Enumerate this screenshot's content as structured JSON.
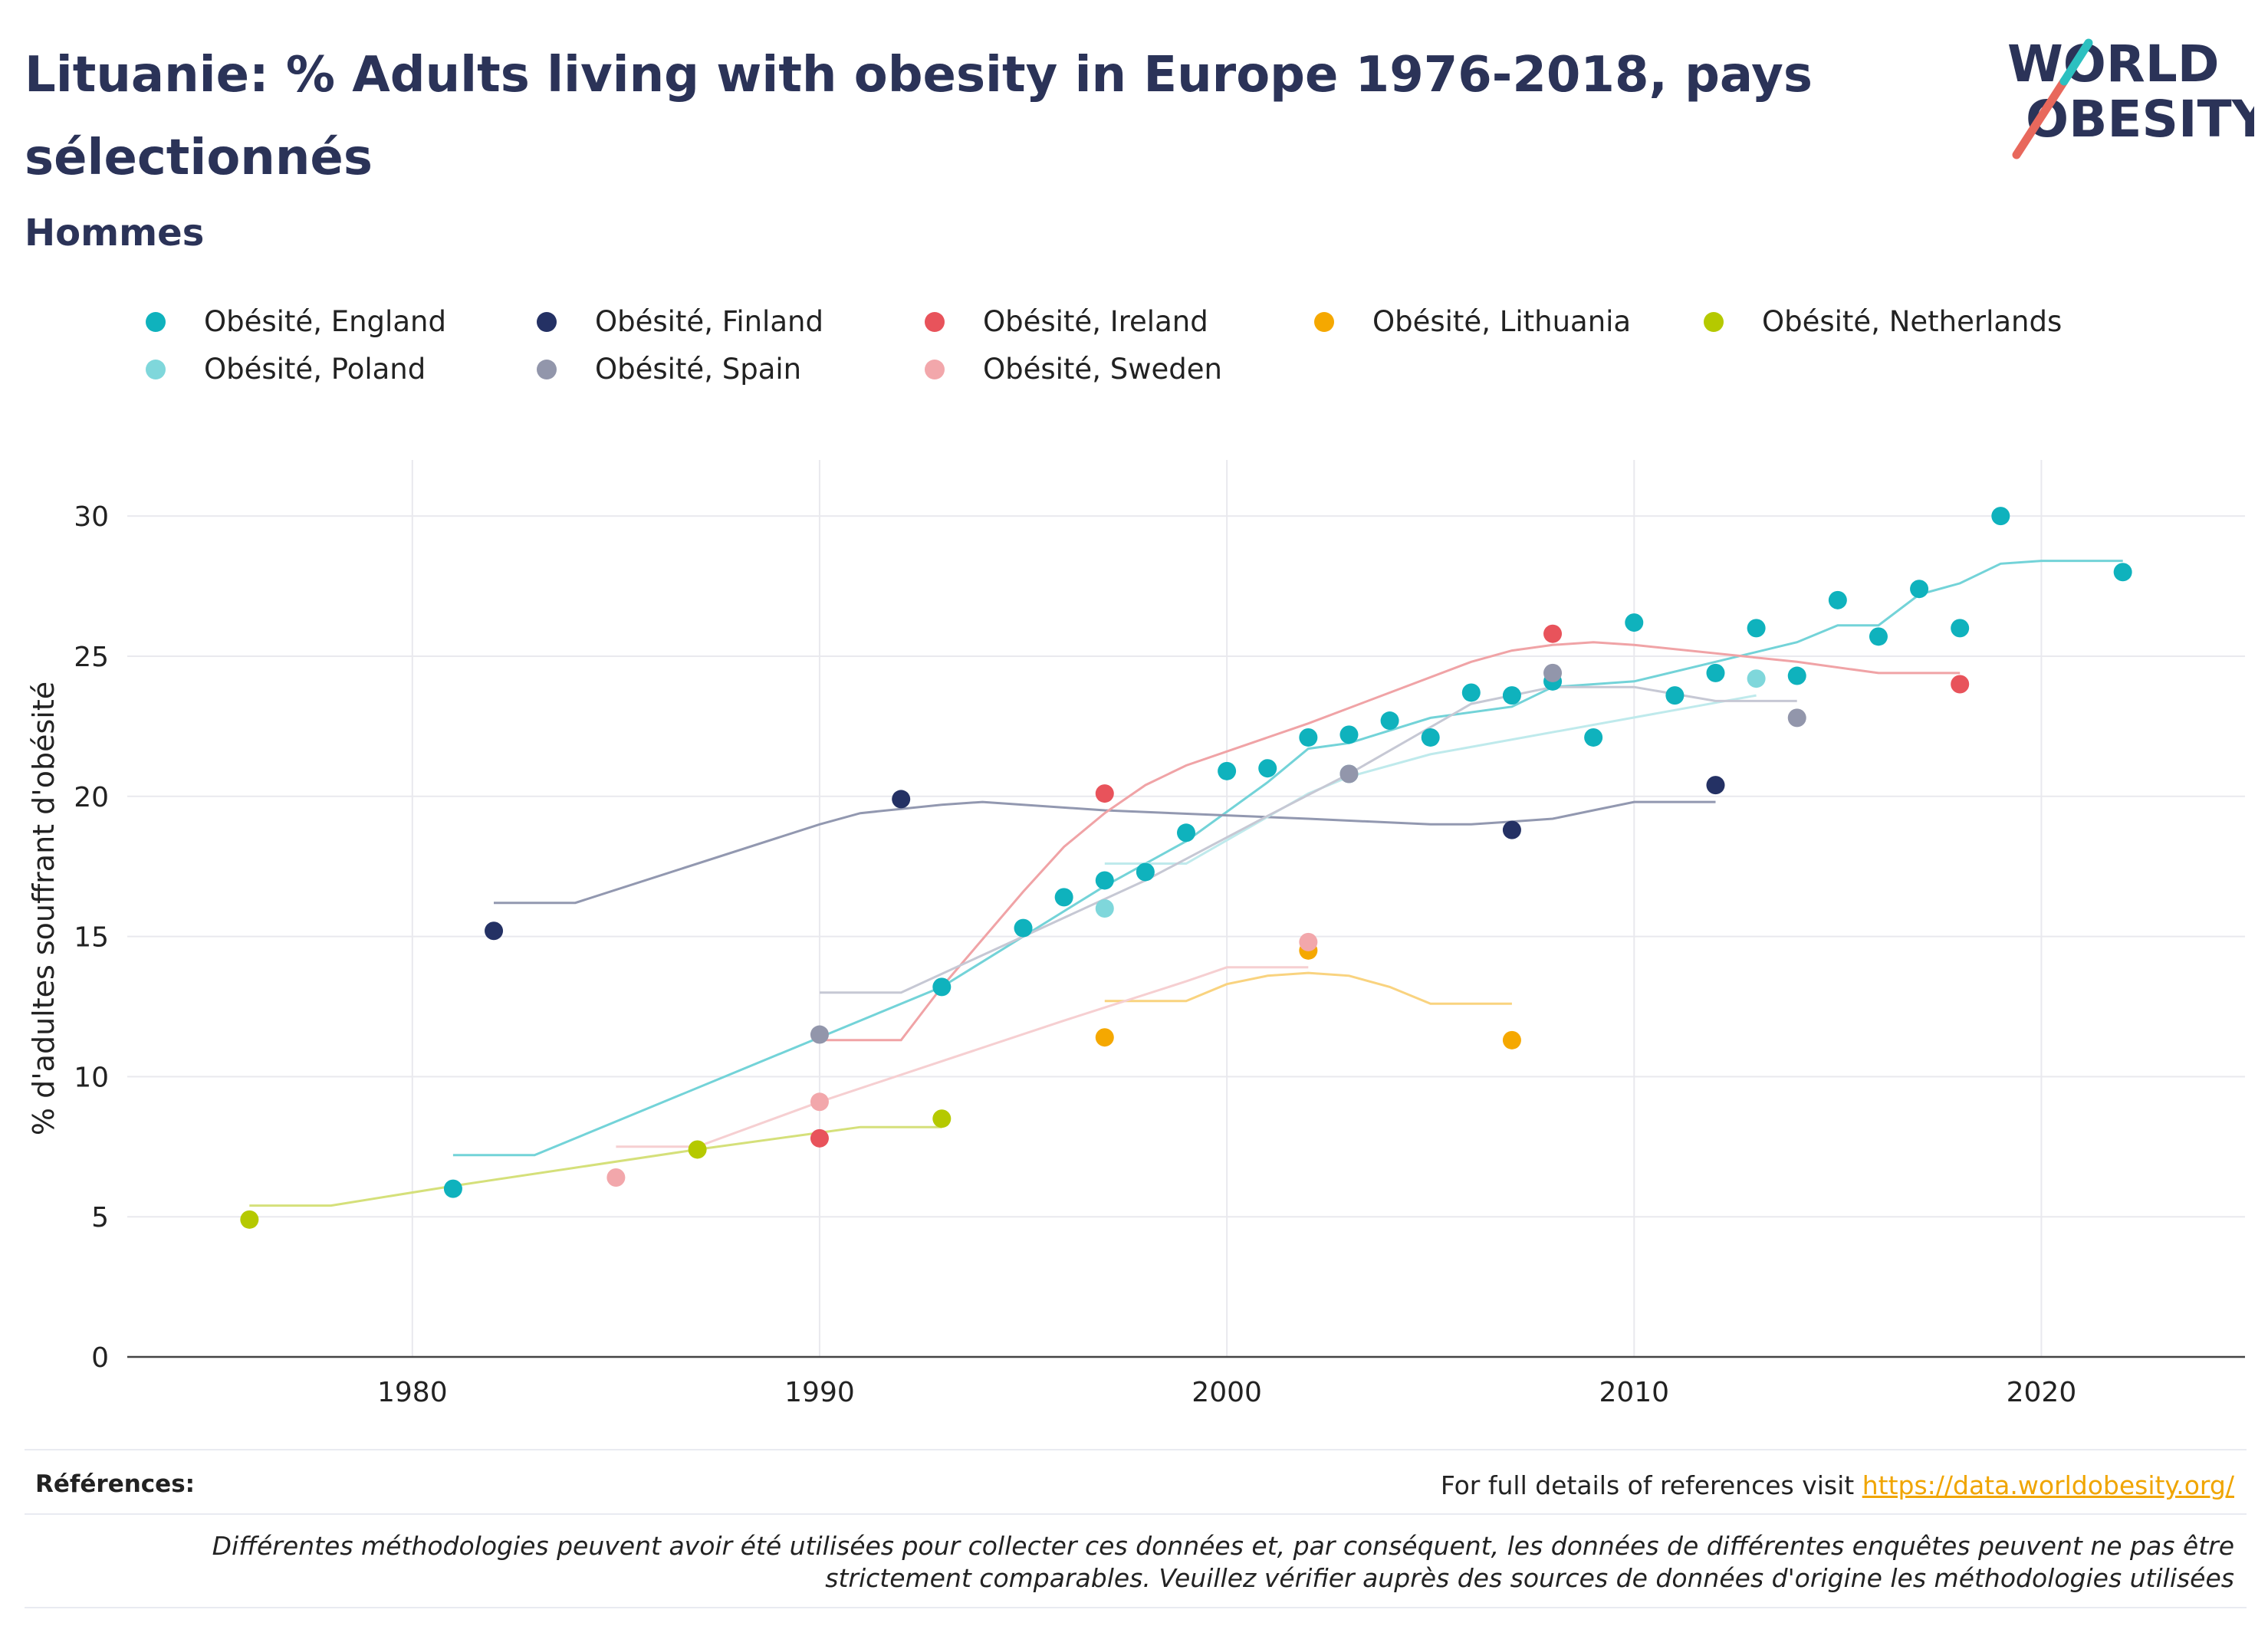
{
  "header": {
    "title": "Lituanie: % Adults living with obesity in Europe 1976-2018, pays sélectionnés",
    "subtitle": "Hommes"
  },
  "logo": {
    "line1": "WORLD",
    "line2": "OBESITY",
    "accent_color": "#e8685c",
    "teal_color": "#2cc0c0"
  },
  "footer": {
    "references_label": "Références:",
    "references_text": "For full details of references visit",
    "references_link": "https://data.worldobesity.org/",
    "disclaimer": "Différentes méthodologies peuvent avoir été utilisées pour collecter ces données et, par conséquent, les données de différentes enquêtes peuvent ne pas être strictement comparables. Veuillez vérifier auprès des sources de données d'origine les méthodologies utilisées"
  },
  "chart_data": {
    "type": "scatter",
    "ylabel": "% d'adultes souffrant d'obésité",
    "xlabel": "",
    "xlim": [
      1973,
      2025
    ],
    "ylim": [
      0,
      32
    ],
    "xticks": [
      1980,
      1990,
      2000,
      2010,
      2020
    ],
    "yticks": [
      0,
      5,
      10,
      15,
      20,
      25,
      30
    ],
    "grid": true,
    "legend_position": "top",
    "series": [
      {
        "name": "Obésité, England",
        "color": "#0fb2bd",
        "line_color": "#73d3d8",
        "points": [
          [
            1981,
            6.0
          ],
          [
            1993,
            13.2
          ],
          [
            1995,
            15.3
          ],
          [
            1996,
            16.4
          ],
          [
            1997,
            17.0
          ],
          [
            1998,
            17.3
          ],
          [
            1999,
            18.7
          ],
          [
            2000,
            20.9
          ],
          [
            2001,
            21.0
          ],
          [
            2002,
            22.1
          ],
          [
            2003,
            22.2
          ],
          [
            2004,
            22.7
          ],
          [
            2005,
            22.1
          ],
          [
            2006,
            23.7
          ],
          [
            2007,
            23.6
          ],
          [
            2008,
            24.1
          ],
          [
            2009,
            22.1
          ],
          [
            2010,
            26.2
          ],
          [
            2011,
            23.6
          ],
          [
            2012,
            24.4
          ],
          [
            2013,
            26.0
          ],
          [
            2014,
            24.3
          ],
          [
            2015,
            27.0
          ],
          [
            2016,
            25.7
          ],
          [
            2017,
            27.4
          ],
          [
            2018,
            26.0
          ],
          [
            2019,
            30.0
          ],
          [
            2022,
            28.0
          ]
        ],
        "trend": [
          [
            1981,
            7.2
          ],
          [
            1983,
            7.2
          ],
          [
            1990,
            11.4
          ],
          [
            1993,
            13.2
          ],
          [
            1995,
            15.0
          ],
          [
            1997,
            16.8
          ],
          [
            1999,
            18.4
          ],
          [
            2001,
            20.5
          ],
          [
            2002,
            21.7
          ],
          [
            2003,
            21.9
          ],
          [
            2005,
            22.8
          ],
          [
            2007,
            23.2
          ],
          [
            2008,
            23.9
          ],
          [
            2010,
            24.1
          ],
          [
            2012,
            24.8
          ],
          [
            2014,
            25.5
          ],
          [
            2015,
            26.1
          ],
          [
            2016,
            26.1
          ],
          [
            2017,
            27.2
          ],
          [
            2018,
            27.6
          ],
          [
            2019,
            28.3
          ],
          [
            2020,
            28.4
          ],
          [
            2022,
            28.4
          ]
        ]
      },
      {
        "name": "Obésité, Finland",
        "color": "#243164",
        "line_color": "#9298b0",
        "points": [
          [
            1982,
            15.2
          ],
          [
            1992,
            19.9
          ],
          [
            2007,
            18.8
          ],
          [
            2012,
            20.4
          ]
        ],
        "trend": [
          [
            1982,
            16.2
          ],
          [
            1984,
            16.2
          ],
          [
            1990,
            19.0
          ],
          [
            1991,
            19.4
          ],
          [
            1993,
            19.7
          ],
          [
            1994,
            19.8
          ],
          [
            1997,
            19.5
          ],
          [
            2002,
            19.2
          ],
          [
            2005,
            19.0
          ],
          [
            2006,
            19.0
          ],
          [
            2007,
            19.1
          ],
          [
            2008,
            19.2
          ],
          [
            2009,
            19.5
          ],
          [
            2010,
            19.8
          ],
          [
            2012,
            19.8
          ]
        ]
      },
      {
        "name": "Obésité, Ireland",
        "color": "#e8535b",
        "line_color": "#f0a3a6",
        "points": [
          [
            1990,
            7.8
          ],
          [
            1997,
            20.1
          ],
          [
            2008,
            25.8
          ],
          [
            2018,
            24.0
          ]
        ],
        "trend": [
          [
            1990,
            11.3
          ],
          [
            1992,
            11.3
          ],
          [
            1993,
            13.2
          ],
          [
            1995,
            16.6
          ],
          [
            1996,
            18.2
          ],
          [
            1997,
            19.4
          ],
          [
            1998,
            20.4
          ],
          [
            1999,
            21.1
          ],
          [
            2002,
            22.6
          ],
          [
            2006,
            24.8
          ],
          [
            2007,
            25.2
          ],
          [
            2008,
            25.4
          ],
          [
            2009,
            25.5
          ],
          [
            2010,
            25.4
          ],
          [
            2014,
            24.8
          ],
          [
            2016,
            24.4
          ],
          [
            2018,
            24.4
          ]
        ]
      },
      {
        "name": "Obésité, Lithuania",
        "color": "#f5a800",
        "line_color": "#f9d37f",
        "points": [
          [
            1997,
            11.4
          ],
          [
            2002,
            14.5
          ],
          [
            2007,
            11.3
          ]
        ],
        "trend": [
          [
            1997,
            12.7
          ],
          [
            1999,
            12.7
          ],
          [
            2000,
            13.3
          ],
          [
            2001,
            13.6
          ],
          [
            2002,
            13.7
          ],
          [
            2003,
            13.6
          ],
          [
            2004,
            13.2
          ],
          [
            2005,
            12.6
          ],
          [
            2007,
            12.6
          ]
        ]
      },
      {
        "name": "Obésité, Netherlands",
        "color": "#b5c900",
        "line_color": "#d5e07a",
        "points": [
          [
            1976,
            4.9
          ],
          [
            1987,
            7.4
          ],
          [
            1993,
            8.5
          ]
        ],
        "trend": [
          [
            1976,
            5.4
          ],
          [
            1978,
            5.4
          ],
          [
            1981,
            6.1
          ],
          [
            1987,
            7.4
          ],
          [
            1990,
            8.0
          ],
          [
            1991,
            8.2
          ],
          [
            1993,
            8.2
          ]
        ]
      },
      {
        "name": "Obésité, Poland",
        "color": "#7fd7db",
        "line_color": "#bfeaec",
        "points": [
          [
            1997,
            16.0
          ],
          [
            2003,
            20.8
          ],
          [
            2013,
            24.2
          ]
        ],
        "trend": [
          [
            1997,
            17.6
          ],
          [
            1999,
            17.6
          ],
          [
            2002,
            20.1
          ],
          [
            2003,
            20.7
          ],
          [
            2005,
            21.5
          ],
          [
            2013,
            23.6
          ]
        ]
      },
      {
        "name": "Obésité, Spain",
        "color": "#9296ab",
        "line_color": "#c6c8d4",
        "points": [
          [
            1990,
            11.5
          ],
          [
            2003,
            20.8
          ],
          [
            2008,
            24.4
          ],
          [
            2014,
            22.8
          ]
        ],
        "trend": [
          [
            1990,
            13.0
          ],
          [
            1992,
            13.0
          ],
          [
            1995,
            15.0
          ],
          [
            1998,
            17.0
          ],
          [
            2001,
            19.3
          ],
          [
            2003,
            20.8
          ],
          [
            2006,
            23.3
          ],
          [
            2008,
            23.9
          ],
          [
            2010,
            23.9
          ],
          [
            2012,
            23.4
          ],
          [
            2014,
            23.4
          ]
        ]
      },
      {
        "name": "Obésité, Sweden",
        "color": "#f2a7ab",
        "line_color": "#f6cfd1",
        "points": [
          [
            1985,
            6.4
          ],
          [
            1990,
            9.1
          ],
          [
            2002,
            14.8
          ]
        ],
        "trend": [
          [
            1985,
            7.5
          ],
          [
            1987,
            7.5
          ],
          [
            1990,
            9.1
          ],
          [
            1996,
            12.0
          ],
          [
            1999,
            13.4
          ],
          [
            2000,
            13.9
          ],
          [
            2002,
            13.9
          ]
        ]
      }
    ]
  }
}
